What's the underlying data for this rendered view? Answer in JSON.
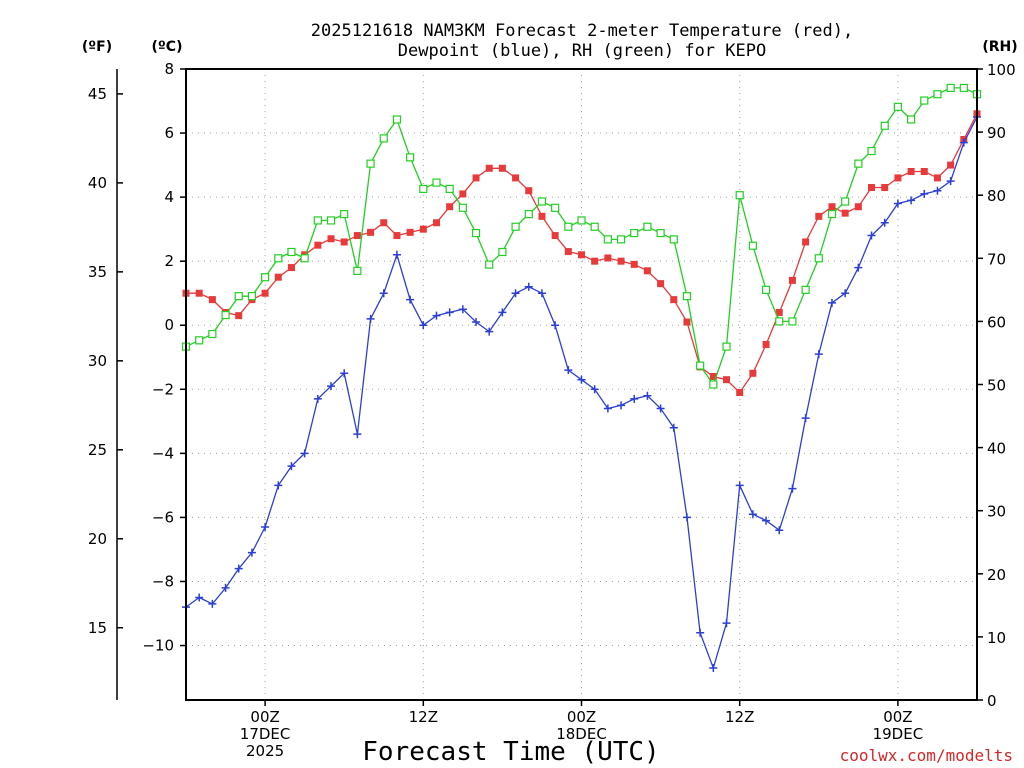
{
  "title_line1": "2025121618 NAM3KM Forecast 2-meter Temperature (red),",
  "title_line2": "Dewpoint (blue), RH (green) for KEPO",
  "unit_f": "(ºF)",
  "unit_c": "(ºC)",
  "unit_rh": "(RH)",
  "xlabel": "Forecast Time (UTC)",
  "credit": "coolwx.com/modelts",
  "colors": {
    "temperature": "#e8393b",
    "dewpoint": "#2b3fd6",
    "rh": "#22d022"
  },
  "chart_data": {
    "type": "line",
    "x_hours_from_start": [
      0,
      1,
      2,
      3,
      4,
      5,
      6,
      7,
      8,
      9,
      10,
      11,
      12,
      13,
      14,
      15,
      16,
      17,
      18,
      19,
      20,
      21,
      22,
      23,
      24,
      25,
      26,
      27,
      28,
      29,
      30,
      31,
      32,
      33,
      34,
      35,
      36,
      37,
      38,
      39,
      40,
      41,
      42,
      43,
      44,
      45,
      46,
      47,
      48,
      49,
      50,
      51,
      52,
      53,
      54,
      55,
      56,
      57,
      58,
      59,
      60
    ],
    "x_tick_labels": [
      {
        "hour": 6,
        "lines": [
          "00Z",
          "17DEC",
          "2025"
        ]
      },
      {
        "hour": 18,
        "lines": [
          "12Z"
        ]
      },
      {
        "hour": 30,
        "lines": [
          "00Z",
          "18DEC"
        ]
      },
      {
        "hour": 42,
        "lines": [
          "12Z"
        ]
      },
      {
        "hour": 54,
        "lines": [
          "00Z",
          "19DEC"
        ]
      }
    ],
    "y_celsius_ticks": [
      8,
      6,
      4,
      2,
      0,
      -2,
      -4,
      -6,
      -8,
      -10
    ],
    "y_fahrenheit_ticks": [
      45,
      40,
      35,
      30,
      25,
      20,
      15
    ],
    "y_rh_ticks": [
      100,
      90,
      80,
      70,
      60,
      50,
      40,
      30,
      20,
      10,
      0
    ],
    "ylim_celsius": [
      -11.7,
      8
    ],
    "ylim_rh": [
      0,
      100
    ],
    "grid": true,
    "series": [
      {
        "name": "Temperature",
        "unit": "C",
        "marker": "filled-square",
        "values": [
          1.0,
          1.0,
          0.8,
          0.4,
          0.3,
          0.8,
          1.0,
          1.5,
          1.8,
          2.2,
          2.5,
          2.7,
          2.6,
          2.8,
          2.9,
          3.2,
          2.8,
          2.9,
          3.0,
          3.2,
          3.7,
          4.1,
          4.6,
          4.9,
          4.9,
          4.6,
          4.2,
          3.4,
          2.8,
          2.3,
          2.2,
          2.0,
          2.1,
          2.0,
          1.9,
          1.7,
          1.3,
          0.8,
          0.1,
          -1.3,
          -1.6,
          -1.7,
          -2.1,
          -1.5,
          -0.6,
          0.4,
          1.4,
          2.6,
          3.4,
          3.7,
          3.5,
          3.7,
          4.3,
          4.3,
          4.6,
          4.8,
          4.8,
          4.6,
          5.0,
          5.8,
          6.6
        ]
      },
      {
        "name": "Dewpoint",
        "unit": "C",
        "marker": "plus",
        "values": [
          -8.8,
          -8.5,
          -8.7,
          -8.2,
          -7.6,
          -7.1,
          -6.3,
          -5.0,
          -4.4,
          -4.0,
          -2.3,
          -1.9,
          -1.5,
          -3.4,
          0.2,
          1.0,
          2.2,
          0.8,
          0.0,
          0.3,
          0.4,
          0.5,
          0.1,
          -0.2,
          0.4,
          1.0,
          1.2,
          1.0,
          0.0,
          -1.4,
          -1.7,
          -2.0,
          -2.6,
          -2.5,
          -2.3,
          -2.2,
          -2.6,
          -3.2,
          -6.0,
          -9.6,
          -10.7,
          -9.3,
          -5.0,
          -5.9,
          -6.1,
          -6.4,
          -5.1,
          -2.9,
          -0.9,
          0.7,
          1.0,
          1.8,
          2.8,
          3.2,
          3.8,
          3.9,
          4.1,
          4.2,
          4.5,
          5.7,
          6.5
        ]
      },
      {
        "name": "RH",
        "unit": "%",
        "marker": "open-square",
        "values": [
          56,
          57,
          58,
          61,
          64,
          64,
          67,
          70,
          71,
          70,
          76,
          76,
          77,
          68,
          85,
          89,
          92,
          86,
          81,
          82,
          81,
          78,
          74,
          69,
          71,
          75,
          77,
          79,
          78,
          75,
          76,
          75,
          73,
          73,
          74,
          75,
          74,
          73,
          64,
          53,
          50,
          56,
          80,
          72,
          65,
          60,
          60,
          65,
          70,
          77,
          79,
          85,
          87,
          91,
          94,
          92,
          95,
          96,
          97,
          97,
          96
        ]
      }
    ]
  }
}
